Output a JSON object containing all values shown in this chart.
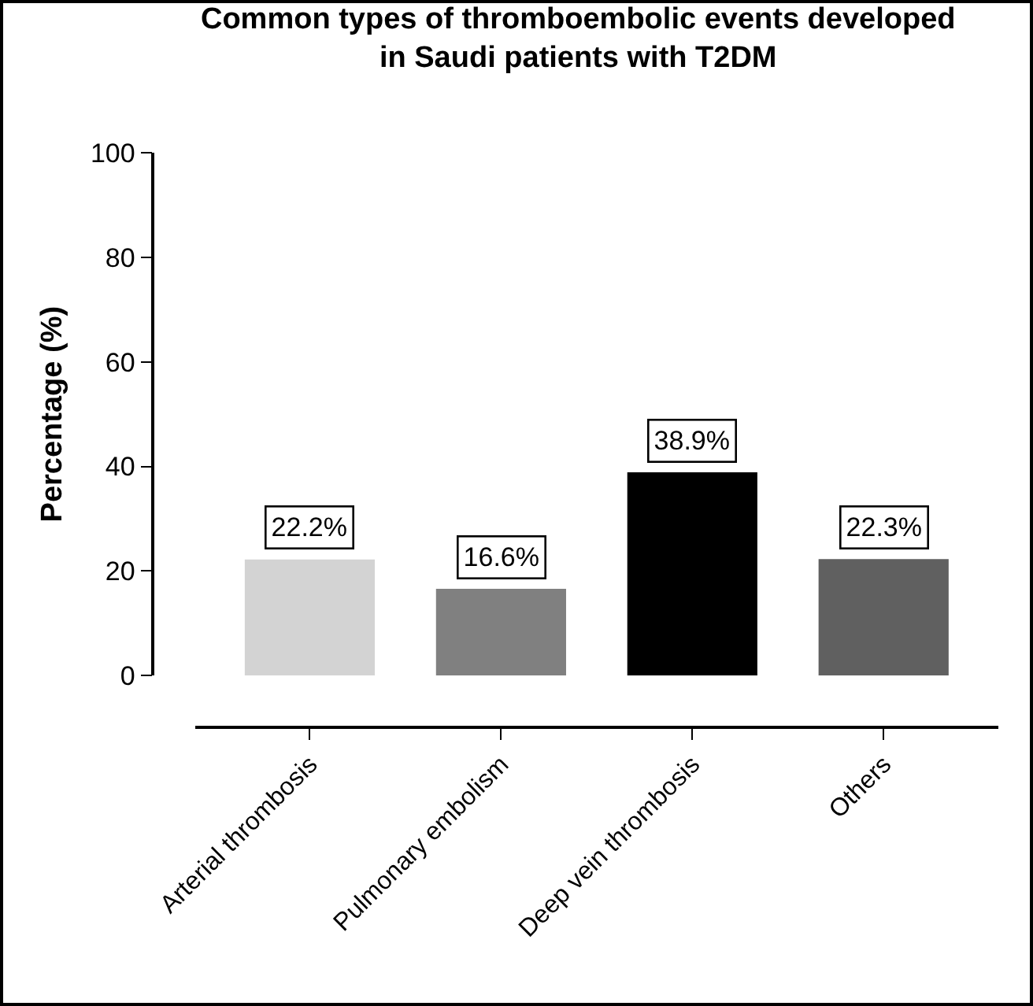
{
  "chart_data": {
    "type": "bar",
    "title": "Common types of thromboembolic events developed\nin Saudi patients with T2DM",
    "ylabel": "Percentage (%)",
    "categories": [
      "Arterial thrombosis",
      "Pulmonary embolism",
      "Deep vein thrombosis",
      "Others"
    ],
    "values": [
      22.2,
      16.6,
      38.9,
      22.3
    ],
    "colors": [
      "#d3d3d3",
      "#808080",
      "#000000",
      "#606060"
    ],
    "value_labels": [
      "22.2%",
      "16.6%",
      "38.9%",
      "22.3%"
    ],
    "ylim": [
      0,
      100
    ],
    "yticks": [
      0,
      20,
      40,
      60,
      80,
      100
    ],
    "grid": false
  }
}
